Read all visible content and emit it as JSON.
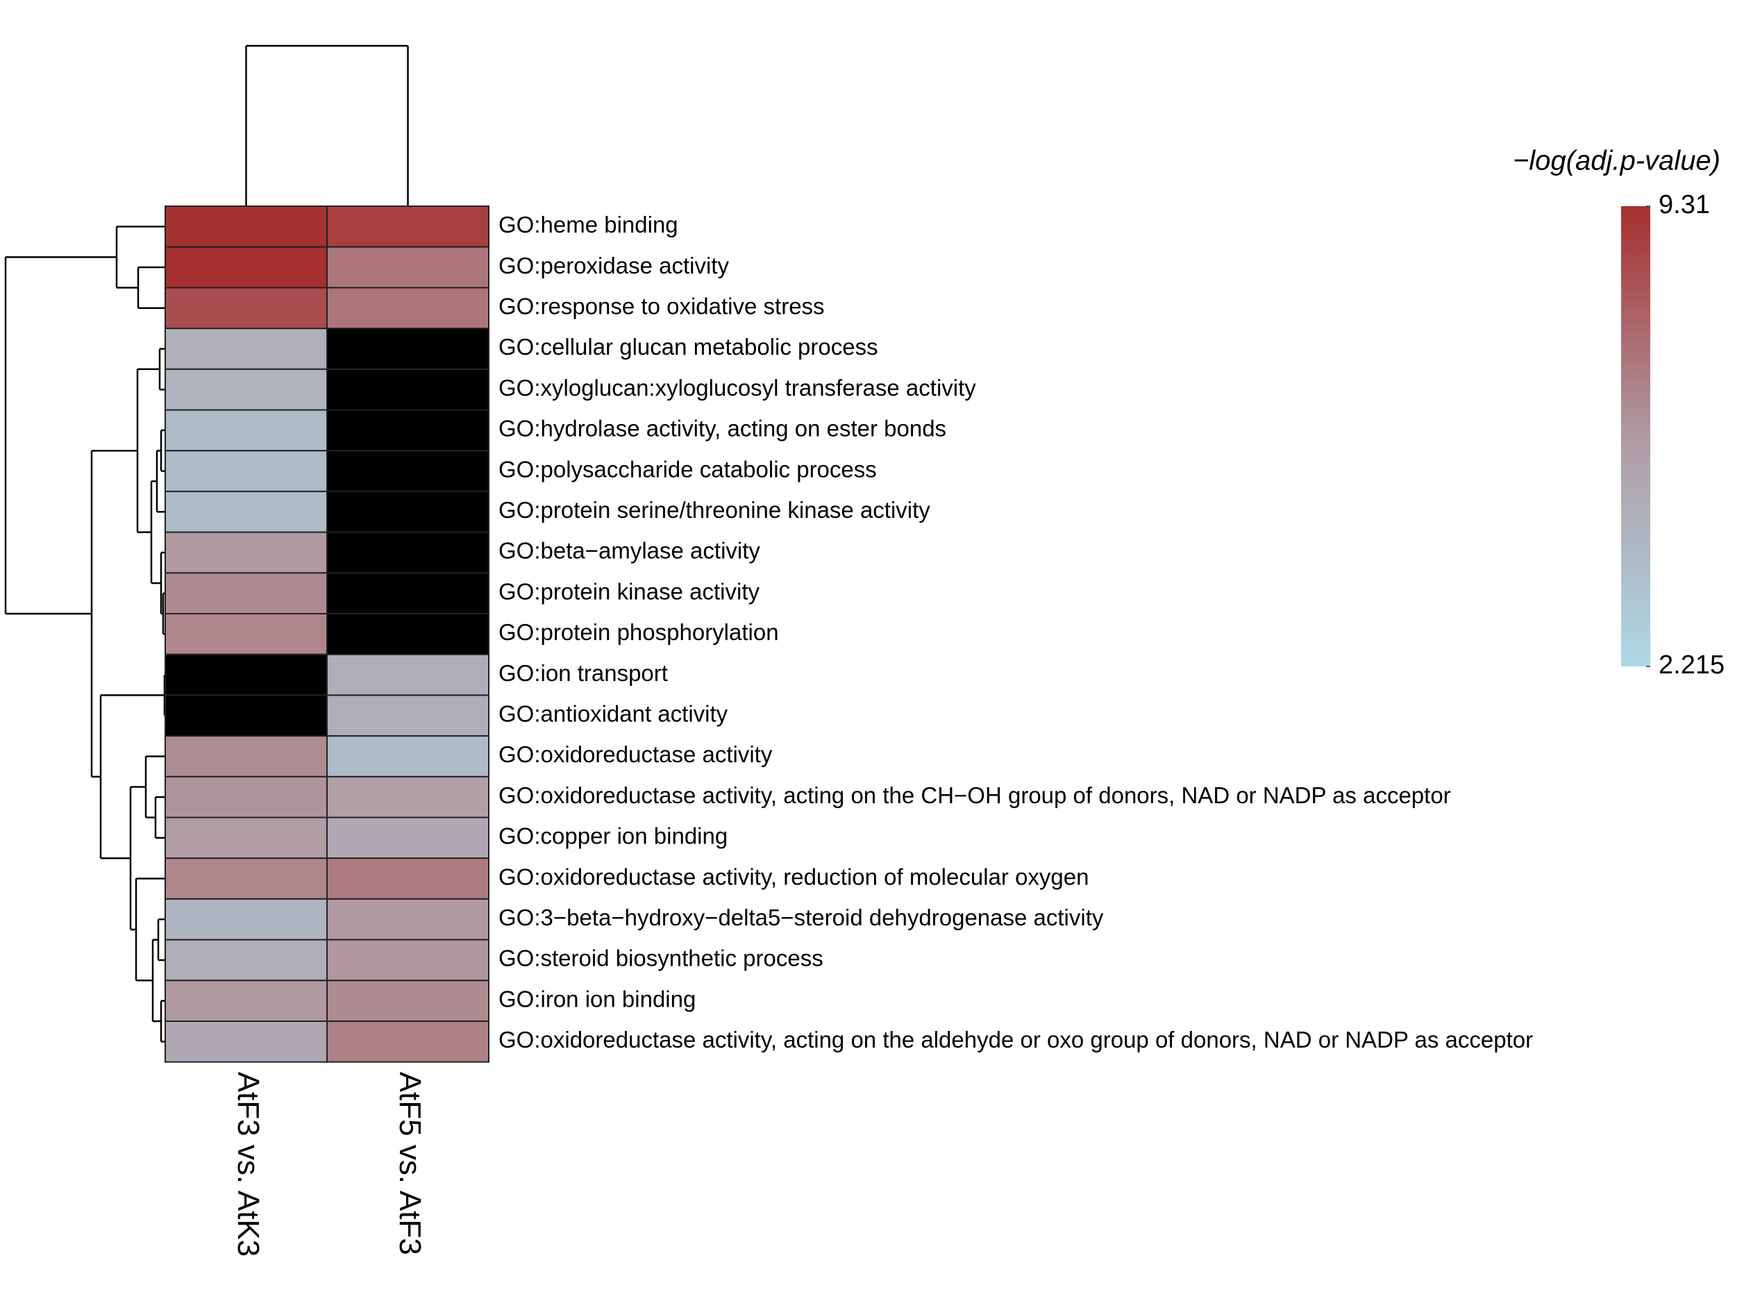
{
  "chart_data": {
    "type": "heatmap",
    "rows": [
      "GO:heme binding",
      "GO:peroxidase activity",
      "GO:response to oxidative stress",
      "GO:cellular glucan metabolic process",
      "GO:xyloglucan:xyloglucosyl transferase activity",
      "GO:hydrolase activity, acting on ester bonds",
      "GO:polysaccharide catabolic process",
      "GO:protein serine/threonine kinase activity",
      "GO:beta−amylase activity",
      "GO:protein kinase activity",
      "GO:protein phosphorylation",
      "GO:ion transport",
      "GO:antioxidant activity",
      "GO:oxidoreductase activity",
      "GO:oxidoreductase activity, acting on the CH−OH group of donors, NAD or NADP as acceptor",
      "GO:copper ion binding",
      "GO:oxidoreductase activity, reduction of molecular oxygen",
      "GO:3−beta−hydroxy−delta5−steroid dehydrogenase activity",
      "GO:steroid biosynthetic process",
      "GO:iron ion binding",
      "GO:oxidoreductase activity, acting on the aldehyde or oxo group of donors, NAD or NADP as acceptor"
    ],
    "columns": [
      "AtF3 vs. AtK3",
      "AtF5 vs. AtF3"
    ],
    "values": [
      [
        9.2,
        8.8
      ],
      [
        9.3,
        7.0
      ],
      [
        8.3,
        7.0
      ],
      [
        4.5,
        null
      ],
      [
        4.3,
        null
      ],
      [
        3.9,
        null
      ],
      [
        3.9,
        null
      ],
      [
        3.8,
        null
      ],
      [
        5.8,
        null
      ],
      [
        6.3,
        null
      ],
      [
        6.4,
        null
      ],
      [
        null,
        4.6
      ],
      [
        null,
        4.7
      ],
      [
        6.2,
        3.9
      ],
      [
        6.0,
        5.5
      ],
      [
        5.6,
        5.0
      ],
      [
        6.4,
        6.8
      ],
      [
        4.2,
        5.8
      ],
      [
        4.6,
        5.9
      ],
      [
        5.7,
        6.3
      ],
      [
        5.0,
        6.6
      ]
    ],
    "colorbar_title": "−log(adj.p-value)",
    "clim": [
      2.215,
      9.31
    ],
    "cticks": [
      9.31,
      2.215
    ],
    "colors": [
      "#add8e6",
      "#b09aa2",
      "#a52f2f"
    ],
    "na_color": "#000000"
  }
}
